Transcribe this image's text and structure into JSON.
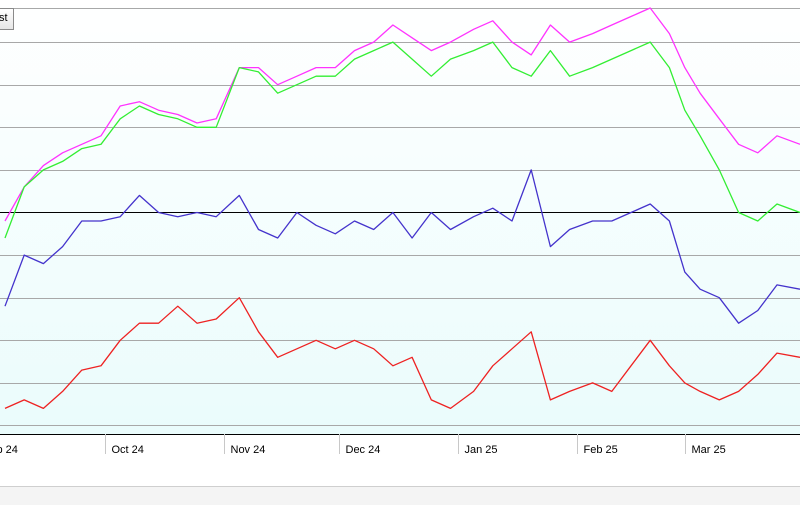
{
  "toolbar": {
    "button_label": "st"
  },
  "chart_data": {
    "type": "line",
    "title": "",
    "xlabel": "",
    "ylabel": "",
    "xlim": [
      "2024-09-05",
      "2025-03-31"
    ],
    "ylim": [
      0,
      100
    ],
    "x_ticks": [
      {
        "date": "2024-09-01",
        "label": "p 24"
      },
      {
        "date": "2024-10-01",
        "label": "Oct 24"
      },
      {
        "date": "2024-11-01",
        "label": "Nov 24"
      },
      {
        "date": "2024-12-01",
        "label": "Dec 24"
      },
      {
        "date": "2025-01-01",
        "label": "Jan 25"
      },
      {
        "date": "2025-02-01",
        "label": "Feb 25"
      },
      {
        "date": "2025-03-01",
        "label": "Mar 25"
      }
    ],
    "gridlines": [
      2,
      12,
      22,
      32,
      42,
      52,
      62,
      72,
      82,
      92,
      100
    ],
    "reference_line": 52,
    "grid": true,
    "colors": {
      "plot_background": "#f0ffff",
      "gridline": "#a8a8a8",
      "reference_line": "#000000",
      "magenta": "#ff33ff",
      "green": "#33ee33",
      "blue": "#4433cc",
      "red": "#ee2222"
    },
    "series": [
      {
        "color": "#ff33ff",
        "points": [
          [
            "2024-09-05",
            50
          ],
          [
            "2024-09-10",
            58
          ],
          [
            "2024-09-15",
            63
          ],
          [
            "2024-09-20",
            66
          ],
          [
            "2024-09-25",
            68
          ],
          [
            "2024-09-30",
            70
          ],
          [
            "2024-10-05",
            77
          ],
          [
            "2024-10-10",
            78
          ],
          [
            "2024-10-15",
            76
          ],
          [
            "2024-10-20",
            75
          ],
          [
            "2024-10-25",
            73
          ],
          [
            "2024-10-30",
            74
          ],
          [
            "2024-11-05",
            86
          ],
          [
            "2024-11-10",
            86
          ],
          [
            "2024-11-15",
            82
          ],
          [
            "2024-11-20",
            84
          ],
          [
            "2024-11-25",
            86
          ],
          [
            "2024-11-30",
            86
          ],
          [
            "2024-12-05",
            90
          ],
          [
            "2024-12-10",
            92
          ],
          [
            "2024-12-15",
            96
          ],
          [
            "2024-12-20",
            93
          ],
          [
            "2024-12-25",
            90
          ],
          [
            "2024-12-30",
            92
          ],
          [
            "2025-01-05",
            95
          ],
          [
            "2025-01-10",
            97
          ],
          [
            "2025-01-15",
            92
          ],
          [
            "2025-01-20",
            89
          ],
          [
            "2025-01-25",
            96
          ],
          [
            "2025-01-30",
            92
          ],
          [
            "2025-02-05",
            94
          ],
          [
            "2025-02-10",
            96
          ],
          [
            "2025-02-15",
            98
          ],
          [
            "2025-02-20",
            100
          ],
          [
            "2025-02-25",
            94
          ],
          [
            "2025-03-01",
            86
          ],
          [
            "2025-03-05",
            80
          ],
          [
            "2025-03-10",
            74
          ],
          [
            "2025-03-15",
            68
          ],
          [
            "2025-03-20",
            66
          ],
          [
            "2025-03-25",
            70
          ],
          [
            "2025-03-31",
            68
          ]
        ]
      },
      {
        "color": "#33ee33",
        "points": [
          [
            "2024-09-05",
            46
          ],
          [
            "2024-09-10",
            58
          ],
          [
            "2024-09-15",
            62
          ],
          [
            "2024-09-20",
            64
          ],
          [
            "2024-09-25",
            67
          ],
          [
            "2024-09-30",
            68
          ],
          [
            "2024-10-05",
            74
          ],
          [
            "2024-10-10",
            77
          ],
          [
            "2024-10-15",
            75
          ],
          [
            "2024-10-20",
            74
          ],
          [
            "2024-10-25",
            72
          ],
          [
            "2024-10-30",
            72
          ],
          [
            "2024-11-05",
            86
          ],
          [
            "2024-11-10",
            85
          ],
          [
            "2024-11-15",
            80
          ],
          [
            "2024-11-20",
            82
          ],
          [
            "2024-11-25",
            84
          ],
          [
            "2024-11-30",
            84
          ],
          [
            "2024-12-05",
            88
          ],
          [
            "2024-12-10",
            90
          ],
          [
            "2024-12-15",
            92
          ],
          [
            "2024-12-20",
            88
          ],
          [
            "2024-12-25",
            84
          ],
          [
            "2024-12-30",
            88
          ],
          [
            "2025-01-05",
            90
          ],
          [
            "2025-01-10",
            92
          ],
          [
            "2025-01-15",
            86
          ],
          [
            "2025-01-20",
            84
          ],
          [
            "2025-01-25",
            90
          ],
          [
            "2025-01-30",
            84
          ],
          [
            "2025-02-05",
            86
          ],
          [
            "2025-02-10",
            88
          ],
          [
            "2025-02-15",
            90
          ],
          [
            "2025-02-20",
            92
          ],
          [
            "2025-02-25",
            86
          ],
          [
            "2025-03-01",
            76
          ],
          [
            "2025-03-05",
            70
          ],
          [
            "2025-03-10",
            62
          ],
          [
            "2025-03-15",
            52
          ],
          [
            "2025-03-20",
            50
          ],
          [
            "2025-03-25",
            54
          ],
          [
            "2025-03-31",
            52
          ]
        ]
      },
      {
        "color": "#4433cc",
        "points": [
          [
            "2024-09-05",
            30
          ],
          [
            "2024-09-10",
            42
          ],
          [
            "2024-09-15",
            40
          ],
          [
            "2024-09-20",
            44
          ],
          [
            "2024-09-25",
            50
          ],
          [
            "2024-09-30",
            50
          ],
          [
            "2024-10-05",
            51
          ],
          [
            "2024-10-10",
            56
          ],
          [
            "2024-10-15",
            52
          ],
          [
            "2024-10-20",
            51
          ],
          [
            "2024-10-25",
            52
          ],
          [
            "2024-10-30",
            51
          ],
          [
            "2024-11-05",
            56
          ],
          [
            "2024-11-10",
            48
          ],
          [
            "2024-11-15",
            46
          ],
          [
            "2024-11-20",
            52
          ],
          [
            "2024-11-25",
            49
          ],
          [
            "2024-11-30",
            47
          ],
          [
            "2024-12-05",
            50
          ],
          [
            "2024-12-10",
            48
          ],
          [
            "2024-12-15",
            52
          ],
          [
            "2024-12-20",
            46
          ],
          [
            "2024-12-25",
            52
          ],
          [
            "2024-12-30",
            48
          ],
          [
            "2025-01-05",
            51
          ],
          [
            "2025-01-10",
            53
          ],
          [
            "2025-01-15",
            50
          ],
          [
            "2025-01-20",
            62
          ],
          [
            "2025-01-25",
            44
          ],
          [
            "2025-01-30",
            48
          ],
          [
            "2025-02-05",
            50
          ],
          [
            "2025-02-10",
            50
          ],
          [
            "2025-02-15",
            52
          ],
          [
            "2025-02-20",
            54
          ],
          [
            "2025-02-25",
            50
          ],
          [
            "2025-03-01",
            38
          ],
          [
            "2025-03-05",
            34
          ],
          [
            "2025-03-10",
            32
          ],
          [
            "2025-03-15",
            26
          ],
          [
            "2025-03-20",
            29
          ],
          [
            "2025-03-25",
            35
          ],
          [
            "2025-03-31",
            34
          ]
        ]
      },
      {
        "color": "#ee2222",
        "points": [
          [
            "2024-09-05",
            6
          ],
          [
            "2024-09-10",
            8
          ],
          [
            "2024-09-15",
            6
          ],
          [
            "2024-09-20",
            10
          ],
          [
            "2024-09-25",
            15
          ],
          [
            "2024-09-30",
            16
          ],
          [
            "2024-10-05",
            22
          ],
          [
            "2024-10-10",
            26
          ],
          [
            "2024-10-15",
            26
          ],
          [
            "2024-10-20",
            30
          ],
          [
            "2024-10-25",
            26
          ],
          [
            "2024-10-30",
            27
          ],
          [
            "2024-11-05",
            32
          ],
          [
            "2024-11-10",
            24
          ],
          [
            "2024-11-15",
            18
          ],
          [
            "2024-11-20",
            20
          ],
          [
            "2024-11-25",
            22
          ],
          [
            "2024-11-30",
            20
          ],
          [
            "2024-12-05",
            22
          ],
          [
            "2024-12-10",
            20
          ],
          [
            "2024-12-15",
            16
          ],
          [
            "2024-12-20",
            18
          ],
          [
            "2024-12-25",
            8
          ],
          [
            "2024-12-30",
            6
          ],
          [
            "2025-01-05",
            10
          ],
          [
            "2025-01-10",
            16
          ],
          [
            "2025-01-15",
            20
          ],
          [
            "2025-01-20",
            24
          ],
          [
            "2025-01-25",
            8
          ],
          [
            "2025-01-30",
            10
          ],
          [
            "2025-02-05",
            12
          ],
          [
            "2025-02-10",
            10
          ],
          [
            "2025-02-15",
            16
          ],
          [
            "2025-02-20",
            22
          ],
          [
            "2025-02-25",
            16
          ],
          [
            "2025-03-01",
            12
          ],
          [
            "2025-03-05",
            10
          ],
          [
            "2025-03-10",
            8
          ],
          [
            "2025-03-15",
            10
          ],
          [
            "2025-03-20",
            14
          ],
          [
            "2025-03-25",
            19
          ],
          [
            "2025-03-31",
            18
          ]
        ]
      }
    ]
  }
}
